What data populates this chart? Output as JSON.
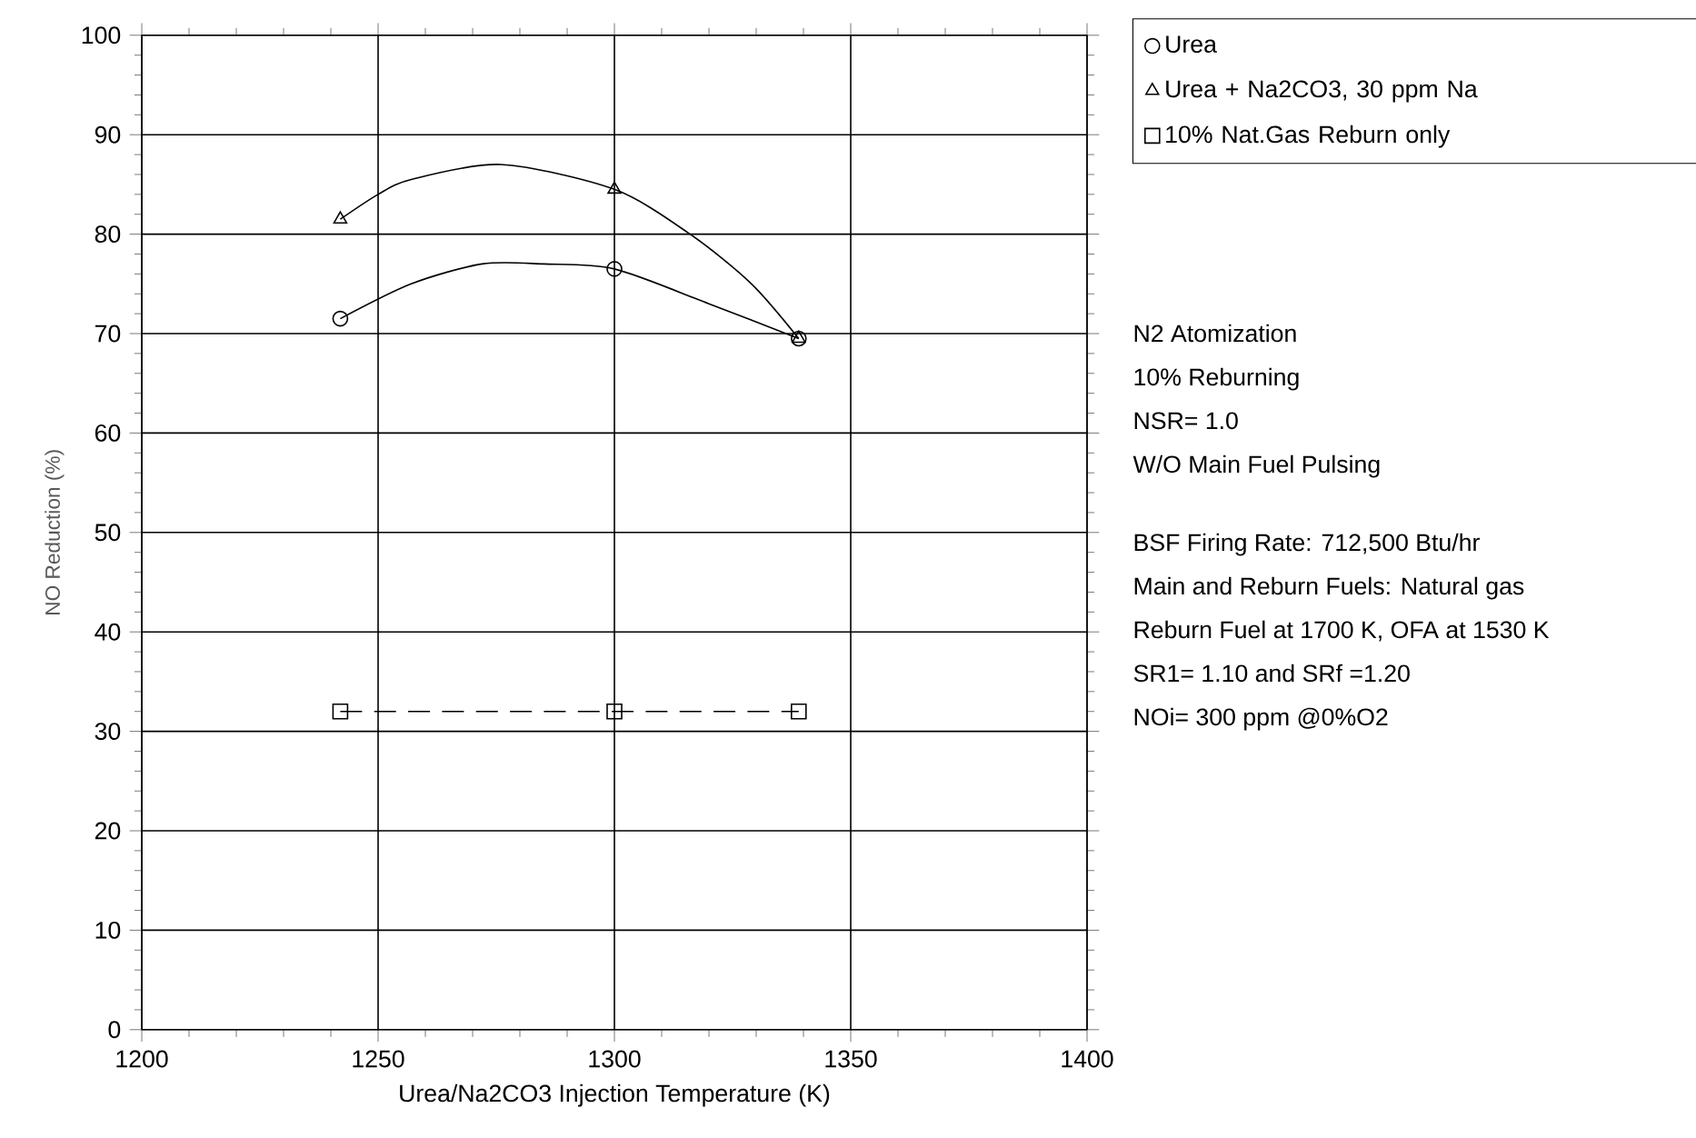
{
  "chart_data": {
    "type": "scatter",
    "xlabel": "Urea/Na2CO3 Injection Temperature (K)",
    "ylabel": "NO Reduction (%)",
    "xlim": [
      1200,
      1400
    ],
    "ylim": [
      0,
      100
    ],
    "xticks": [
      1200,
      1250,
      1300,
      1350,
      1400
    ],
    "yticks": [
      0,
      10,
      20,
      30,
      40,
      50,
      60,
      70,
      80,
      90,
      100
    ],
    "grid": true,
    "legend": "top right",
    "annotations": [
      "N2 Atomization",
      "10% Reburning",
      "NSR= 1.0",
      "W/O Main Fuel Pulsing",
      "BSF Firing Rate: 712,500 Btu/hr",
      "Main and Reburn Fuels:  Natural gas",
      "Reburn Fuel at 1700 K, OFA  at 1530 K",
      "SR1= 1.10 and SRf =1.20",
      "NOi= 300 ppm @0%O2"
    ],
    "series": [
      {
        "name": "Urea",
        "marker": "circle",
        "color": "#000000",
        "x": [
          1242,
          1300,
          1339
        ],
        "values": [
          71.5,
          76.5,
          69.5
        ]
      },
      {
        "name": "Urea + Na2CO3, 30 ppm Na",
        "marker": "triangle",
        "color": "#000000",
        "x": [
          1242,
          1300,
          1339
        ],
        "values": [
          81.5,
          84.5,
          69.5
        ]
      },
      {
        "name": "10% Nat.Gas Reburn only",
        "type": "line",
        "marker": "square",
        "line_style": "dashed",
        "color": "#000000",
        "x": [
          1242,
          1300,
          1339
        ],
        "values": [
          32,
          32,
          32
        ]
      },
      {
        "type": "line",
        "marker": "none",
        "color": "#000000",
        "x": [
          1242,
          1257,
          1272,
          1285,
          1300,
          1320,
          1339
        ],
        "values": [
          71.5,
          75,
          77,
          77,
          76.5,
          73,
          69.5
        ]
      },
      {
        "type": "line",
        "marker": "none",
        "color": "#000000",
        "x": [
          1242,
          1250,
          1257,
          1276,
          1300,
          1316,
          1329,
          1339
        ],
        "values": [
          81.5,
          84,
          85.5,
          87,
          84.5,
          80,
          75,
          69.5
        ]
      }
    ]
  }
}
